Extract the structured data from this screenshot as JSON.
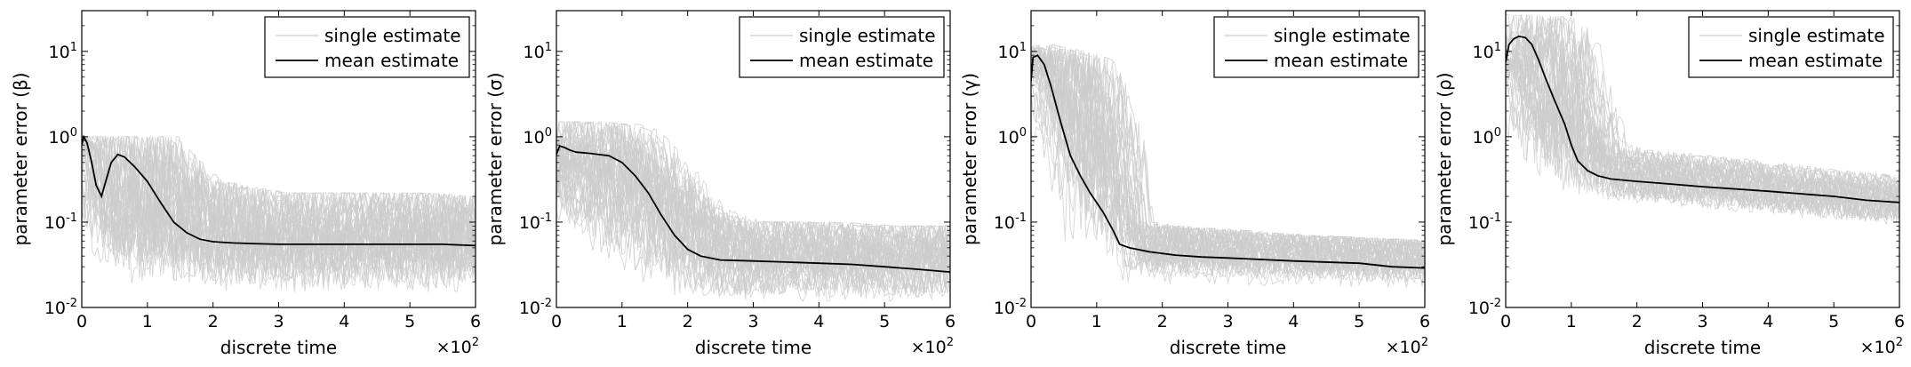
{
  "chart_data": [
    {
      "type": "line",
      "ylabel": "parameter error (β)",
      "xlabel": "discrete time",
      "x_multiplier": "×10",
      "x_multiplier_exp": "2",
      "xlim": [
        0,
        600
      ],
      "ylim": [
        0.01,
        30
      ],
      "yscale": "log",
      "grid": false,
      "legend_position": "top-right",
      "x_ticks": [
        {
          "value": 0,
          "label": "0"
        },
        {
          "value": 100,
          "label": "1"
        },
        {
          "value": 200,
          "label": "2"
        },
        {
          "value": 300,
          "label": "3"
        },
        {
          "value": 400,
          "label": "4"
        },
        {
          "value": 500,
          "label": "5"
        },
        {
          "value": 600,
          "label": "6"
        }
      ],
      "y_ticks": [
        {
          "value": 0.01,
          "base": "10",
          "exp": "-2"
        },
        {
          "value": 0.1,
          "base": "10",
          "exp": "-1"
        },
        {
          "value": 1,
          "base": "10",
          "exp": "0"
        },
        {
          "value": 10,
          "base": "10",
          "exp": "1"
        }
      ],
      "series": [
        {
          "name": "single estimate",
          "color": "#cccccc",
          "kind": "band",
          "x": [
            0,
            10,
            30,
            50,
            70,
            100,
            130,
            160,
            200,
            250,
            300,
            400,
            500,
            600
          ],
          "upper": [
            1.0,
            1.0,
            1.0,
            1.0,
            1.0,
            1.0,
            1.0,
            0.6,
            0.3,
            0.25,
            0.22,
            0.22,
            0.22,
            0.2
          ],
          "lower": [
            0.6,
            0.05,
            0.02,
            0.015,
            0.012,
            0.011,
            0.011,
            0.011,
            0.011,
            0.011,
            0.011,
            0.011,
            0.011,
            0.011
          ]
        },
        {
          "name": "mean estimate",
          "color": "#000000",
          "kind": "line",
          "x": [
            0,
            3,
            8,
            15,
            22,
            30,
            38,
            45,
            55,
            65,
            80,
            100,
            120,
            140,
            160,
            180,
            200,
            230,
            260,
            300,
            350,
            400,
            450,
            500,
            550,
            600
          ],
          "y": [
            0.8,
            1.0,
            0.85,
            0.5,
            0.27,
            0.2,
            0.33,
            0.5,
            0.62,
            0.58,
            0.45,
            0.3,
            0.17,
            0.1,
            0.075,
            0.063,
            0.059,
            0.057,
            0.056,
            0.055,
            0.055,
            0.055,
            0.055,
            0.055,
            0.055,
            0.053
          ]
        }
      ]
    },
    {
      "type": "line",
      "ylabel": "parameter error (σ)",
      "xlabel": "discrete time",
      "x_multiplier": "×10",
      "x_multiplier_exp": "2",
      "xlim": [
        0,
        600
      ],
      "ylim": [
        0.01,
        30
      ],
      "yscale": "log",
      "grid": false,
      "legend_position": "top-right",
      "x_ticks": [
        {
          "value": 0,
          "label": "0"
        },
        {
          "value": 100,
          "label": "1"
        },
        {
          "value": 200,
          "label": "2"
        },
        {
          "value": 300,
          "label": "3"
        },
        {
          "value": 400,
          "label": "4"
        },
        {
          "value": 500,
          "label": "5"
        },
        {
          "value": 600,
          "label": "6"
        }
      ],
      "y_ticks": [
        {
          "value": 0.01,
          "base": "10",
          "exp": "-2"
        },
        {
          "value": 0.1,
          "base": "10",
          "exp": "-1"
        },
        {
          "value": 1,
          "base": "10",
          "exp": "0"
        },
        {
          "value": 10,
          "base": "10",
          "exp": "1"
        }
      ],
      "series": [
        {
          "name": "single estimate",
          "color": "#cccccc",
          "kind": "band",
          "x": [
            0,
            10,
            50,
            100,
            130,
            160,
            200,
            230,
            260,
            300,
            400,
            500,
            600
          ],
          "upper": [
            1.2,
            1.5,
            1.5,
            1.4,
            1.2,
            0.7,
            0.3,
            0.15,
            0.12,
            0.1,
            0.1,
            0.09,
            0.09
          ],
          "lower": [
            0.12,
            0.08,
            0.05,
            0.03,
            0.02,
            0.015,
            0.012,
            0.011,
            0.011,
            0.011,
            0.011,
            0.011,
            0.011
          ]
        },
        {
          "name": "mean estimate",
          "color": "#000000",
          "kind": "line",
          "x": [
            0,
            5,
            12,
            20,
            30,
            50,
            80,
            100,
            120,
            140,
            160,
            180,
            200,
            220,
            250,
            300,
            350,
            400,
            450,
            500,
            550,
            600
          ],
          "y": [
            0.62,
            0.78,
            0.75,
            0.7,
            0.66,
            0.64,
            0.6,
            0.5,
            0.35,
            0.22,
            0.12,
            0.07,
            0.048,
            0.04,
            0.036,
            0.035,
            0.034,
            0.033,
            0.032,
            0.03,
            0.028,
            0.026
          ]
        }
      ]
    },
    {
      "type": "line",
      "ylabel": "parameter error (γ)",
      "xlabel": "discrete time",
      "x_multiplier": "×10",
      "x_multiplier_exp": "2",
      "xlim": [
        0,
        600
      ],
      "ylim": [
        0.01,
        30
      ],
      "yscale": "log",
      "grid": false,
      "legend_position": "top-right",
      "x_ticks": [
        {
          "value": 0,
          "label": "0"
        },
        {
          "value": 100,
          "label": "1"
        },
        {
          "value": 200,
          "label": "2"
        },
        {
          "value": 300,
          "label": "3"
        },
        {
          "value": 400,
          "label": "4"
        },
        {
          "value": 500,
          "label": "5"
        },
        {
          "value": 600,
          "label": "6"
        }
      ],
      "y_ticks": [
        {
          "value": 0.01,
          "base": "10",
          "exp": "-2"
        },
        {
          "value": 0.1,
          "base": "10",
          "exp": "-1"
        },
        {
          "value": 1,
          "base": "10",
          "exp": "0"
        },
        {
          "value": 10,
          "base": "10",
          "exp": "1"
        }
      ],
      "series": [
        {
          "name": "single estimate",
          "color": "#cccccc",
          "kind": "band",
          "x": [
            0,
            10,
            30,
            60,
            100,
            130,
            160,
            200,
            300,
            400,
            500,
            600
          ],
          "upper": [
            11,
            12,
            11,
            10,
            8,
            2,
            0.1,
            0.09,
            0.08,
            0.07,
            0.065,
            0.06
          ],
          "lower": [
            4,
            2,
            0.5,
            0.05,
            0.025,
            0.02,
            0.018,
            0.017,
            0.017,
            0.016,
            0.016,
            0.015
          ]
        },
        {
          "name": "mean estimate",
          "color": "#000000",
          "kind": "line",
          "x": [
            0,
            3,
            10,
            20,
            30,
            45,
            60,
            75,
            90,
            110,
            125,
            135,
            150,
            180,
            220,
            260,
            300,
            400,
            500,
            550,
            600
          ],
          "y": [
            4.5,
            8.5,
            9,
            7,
            4,
            1.5,
            0.6,
            0.35,
            0.22,
            0.13,
            0.08,
            0.055,
            0.05,
            0.045,
            0.041,
            0.039,
            0.038,
            0.035,
            0.033,
            0.03,
            0.029
          ]
        }
      ]
    },
    {
      "type": "line",
      "ylabel": "parameter error (ρ)",
      "xlabel": "discrete time",
      "x_multiplier": "×10",
      "x_multiplier_exp": "2",
      "xlim": [
        0,
        600
      ],
      "ylim": [
        0.01,
        30
      ],
      "yscale": "log",
      "grid": false,
      "legend_position": "top-right",
      "x_ticks": [
        {
          "value": 0,
          "label": "0"
        },
        {
          "value": 100,
          "label": "1"
        },
        {
          "value": 200,
          "label": "2"
        },
        {
          "value": 300,
          "label": "3"
        },
        {
          "value": 400,
          "label": "4"
        },
        {
          "value": 500,
          "label": "5"
        },
        {
          "value": 600,
          "label": "6"
        }
      ],
      "y_ticks": [
        {
          "value": 0.01,
          "base": "10",
          "exp": "-2"
        },
        {
          "value": 0.1,
          "base": "10",
          "exp": "-1"
        },
        {
          "value": 1,
          "base": "10",
          "exp": "0"
        },
        {
          "value": 10,
          "base": "10",
          "exp": "1"
        }
      ],
      "series": [
        {
          "name": "single estimate",
          "color": "#cccccc",
          "kind": "band",
          "x": [
            0,
            10,
            30,
            60,
            90,
            110,
            130,
            160,
            200,
            300,
            400,
            500,
            600
          ],
          "upper": [
            8,
            25,
            27,
            26,
            25,
            20,
            5,
            0.9,
            0.7,
            0.6,
            0.5,
            0.4,
            0.35
          ],
          "lower": [
            6,
            3,
            0.6,
            0.3,
            0.2,
            0.18,
            0.17,
            0.17,
            0.16,
            0.14,
            0.12,
            0.1,
            0.09
          ]
        },
        {
          "name": "mean estimate",
          "color": "#000000",
          "kind": "line",
          "x": [
            0,
            5,
            12,
            20,
            30,
            40,
            50,
            60,
            75,
            90,
            100,
            110,
            125,
            140,
            160,
            200,
            250,
            300,
            400,
            500,
            550,
            600
          ],
          "y": [
            7.5,
            12,
            14,
            15,
            14.5,
            12,
            8,
            5,
            2.6,
            1.4,
            0.8,
            0.52,
            0.4,
            0.35,
            0.32,
            0.3,
            0.28,
            0.26,
            0.23,
            0.2,
            0.18,
            0.17
          ]
        }
      ]
    }
  ]
}
